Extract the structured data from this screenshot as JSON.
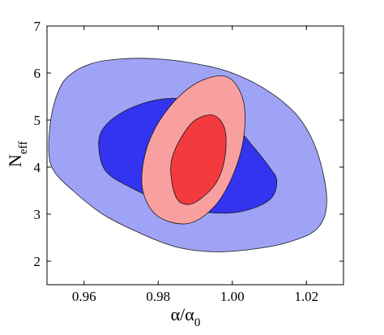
{
  "chart_data": {
    "type": "contour",
    "xlabel": {
      "main": "α/α",
      "sub": "0"
    },
    "ylabel": {
      "main": "N",
      "sub": "eff"
    },
    "xlim": [
      0.95,
      1.03
    ],
    "ylim": [
      1.5,
      7
    ],
    "xticks": [
      0.96,
      0.98,
      1.0,
      1.02
    ],
    "xtick_labels": [
      "0.96",
      "0.98",
      "1.00",
      "1.02"
    ],
    "yticks": [
      2,
      3,
      4,
      5,
      6,
      7
    ],
    "ytick_labels": [
      "2",
      "3",
      "4",
      "5",
      "6",
      "7"
    ],
    "grid": false,
    "legend": null,
    "contours": [
      {
        "id": "blue-outer",
        "color": "#9fa3f5",
        "points": [
          [
            0.9505,
            4.3
          ],
          [
            0.951,
            5.0
          ],
          [
            0.953,
            5.6
          ],
          [
            0.956,
            5.95
          ],
          [
            0.962,
            6.2
          ],
          [
            0.97,
            6.3
          ],
          [
            0.98,
            6.3
          ],
          [
            0.99,
            6.2
          ],
          [
            1.0,
            6.0
          ],
          [
            1.01,
            5.6
          ],
          [
            1.018,
            5.05
          ],
          [
            1.023,
            4.3
          ],
          [
            1.0255,
            3.3
          ],
          [
            1.023,
            2.7
          ],
          [
            1.015,
            2.4
          ],
          [
            1.005,
            2.25
          ],
          [
            0.995,
            2.2
          ],
          [
            0.985,
            2.3
          ],
          [
            0.975,
            2.6
          ],
          [
            0.965,
            3.0
          ],
          [
            0.957,
            3.5
          ],
          [
            0.952,
            3.9
          ]
        ]
      },
      {
        "id": "blue-inner",
        "color": "#3333f0",
        "points": [
          [
            0.964,
            4.4
          ],
          [
            0.965,
            4.8
          ],
          [
            0.97,
            5.15
          ],
          [
            0.978,
            5.4
          ],
          [
            0.986,
            5.45
          ],
          [
            0.994,
            5.25
          ],
          [
            1.001,
            4.85
          ],
          [
            1.006,
            4.4
          ],
          [
            1.01,
            4.0
          ],
          [
            1.012,
            3.7
          ],
          [
            1.01,
            3.3
          ],
          [
            1.002,
            3.05
          ],
          [
            0.992,
            3.05
          ],
          [
            0.982,
            3.25
          ],
          [
            0.973,
            3.55
          ],
          [
            0.966,
            3.9
          ]
        ]
      },
      {
        "id": "red-outer",
        "color": "#f8a0a0",
        "points": [
          [
            0.98,
            2.95
          ],
          [
            0.976,
            3.45
          ],
          [
            0.976,
            4.1
          ],
          [
            0.979,
            4.8
          ],
          [
            0.985,
            5.45
          ],
          [
            0.992,
            5.85
          ],
          [
            0.999,
            5.9
          ],
          [
            1.003,
            5.4
          ],
          [
            1.003,
            4.6
          ],
          [
            1.0,
            3.8
          ],
          [
            0.995,
            3.15
          ],
          [
            0.988,
            2.8
          ]
        ]
      },
      {
        "id": "red-inner",
        "color": "#f23a3f",
        "points": [
          [
            0.984,
            3.55
          ],
          [
            0.9835,
            4.1
          ],
          [
            0.986,
            4.6
          ],
          [
            0.99,
            5.0
          ],
          [
            0.995,
            5.1
          ],
          [
            0.998,
            4.8
          ],
          [
            0.998,
            4.2
          ],
          [
            0.9955,
            3.65
          ],
          [
            0.99,
            3.25
          ],
          [
            0.986,
            3.25
          ]
        ]
      }
    ]
  }
}
